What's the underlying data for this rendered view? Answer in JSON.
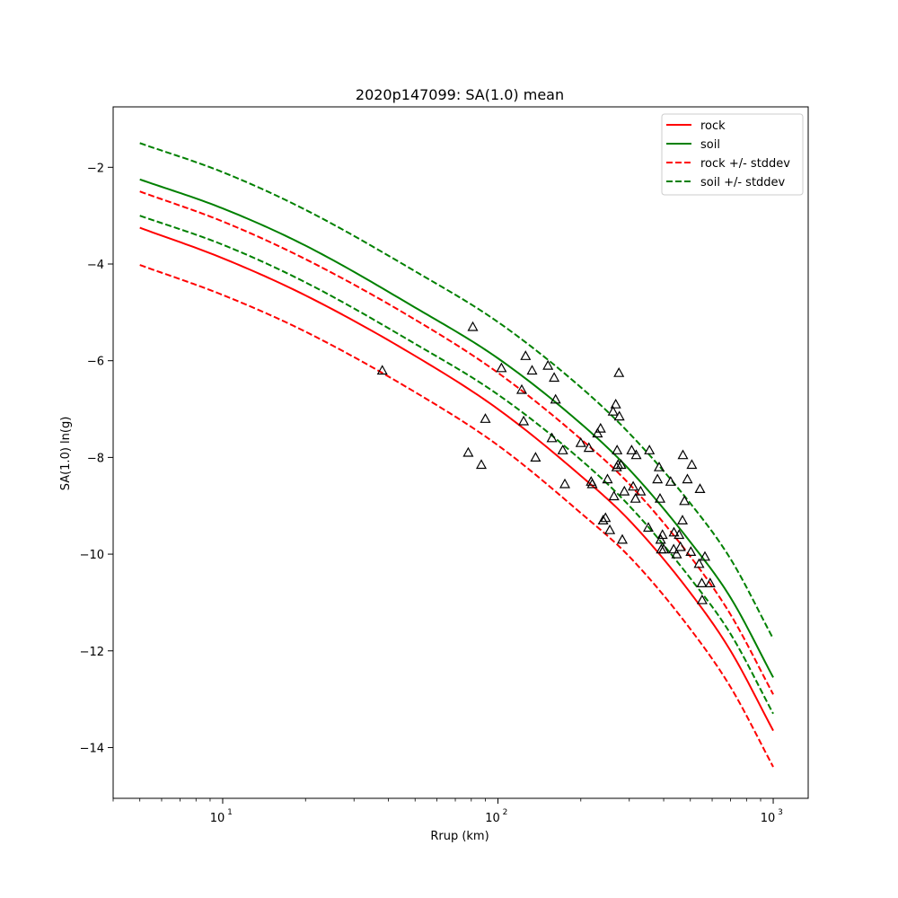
{
  "chart_data": {
    "type": "line",
    "title": "2020p147099: SA(1.0) mean",
    "xlabel": "Rrup (km)",
    "ylabel": "SA(1.0) ln(g)",
    "xscale": "log",
    "xlim": [
      4.0,
      1340
    ],
    "ylim": [
      -15.05,
      -0.75
    ],
    "xticks": [
      {
        "value": 10,
        "base": "10",
        "exp": "1"
      },
      {
        "value": 100,
        "base": "10",
        "exp": "2"
      },
      {
        "value": 1000,
        "base": "10",
        "exp": "3"
      }
    ],
    "yticks": [
      -14,
      -12,
      -10,
      -8,
      -6,
      -4,
      -2
    ],
    "grid": false,
    "legend": "top-right",
    "colors": {
      "rock": "#ff0000",
      "soil": "#008000",
      "stations": "#000000"
    },
    "series": [
      {
        "name": "rock",
        "key": "rock",
        "style": "solid",
        "x": [
          5,
          10,
          20,
          50,
          100,
          200,
          300,
          500,
          700,
          1000
        ],
        "y": [
          -3.25,
          -3.88,
          -4.65,
          -5.9,
          -7.0,
          -8.38,
          -9.3,
          -10.8,
          -12.0,
          -13.65
        ]
      },
      {
        "name": "soil",
        "key": "soil",
        "style": "solid",
        "x": [
          5,
          10,
          20,
          50,
          100,
          200,
          300,
          500,
          700,
          1000
        ],
        "y": [
          -2.25,
          -2.85,
          -3.62,
          -4.9,
          -5.95,
          -7.3,
          -8.25,
          -9.75,
          -10.9,
          -12.55
        ]
      },
      {
        "name": "rock +/- stddev",
        "key": "rock_upper",
        "style": "dashed",
        "x": [
          5,
          10,
          20,
          50,
          100,
          200,
          300,
          500,
          700,
          1000
        ],
        "y": [
          -2.5,
          -3.12,
          -3.9,
          -5.15,
          -6.25,
          -7.62,
          -8.55,
          -10.05,
          -11.25,
          -12.9
        ]
      },
      {
        "name": "",
        "key": "rock_lower",
        "style": "dashed",
        "x": [
          5,
          10,
          20,
          50,
          100,
          200,
          300,
          500,
          700,
          1000
        ],
        "y": [
          -4.02,
          -4.64,
          -5.4,
          -6.65,
          -7.75,
          -9.15,
          -10.05,
          -11.55,
          -12.75,
          -14.4
        ]
      },
      {
        "name": "soil +/- stddev",
        "key": "soil_upper",
        "style": "dashed",
        "x": [
          5,
          10,
          20,
          50,
          100,
          200,
          300,
          500,
          700,
          1000
        ],
        "y": [
          -1.5,
          -2.1,
          -2.88,
          -4.15,
          -5.2,
          -6.55,
          -7.5,
          -8.95,
          -10.1,
          -11.75
        ]
      },
      {
        "name": "",
        "key": "soil_lower",
        "style": "dashed",
        "x": [
          5,
          10,
          20,
          50,
          100,
          200,
          300,
          500,
          700,
          1000
        ],
        "y": [
          -3.0,
          -3.6,
          -4.38,
          -5.65,
          -6.7,
          -8.05,
          -9.0,
          -10.5,
          -11.65,
          -13.3
        ]
      }
    ],
    "stations": {
      "marker": "triangle",
      "x": [
        38,
        78,
        81,
        87,
        90,
        103,
        122,
        124,
        126,
        133,
        137,
        152,
        157,
        160,
        162,
        172,
        175,
        200,
        214,
        218,
        220,
        230,
        236,
        241,
        246,
        250,
        255,
        262,
        264,
        268,
        270,
        271,
        273,
        275,
        276,
        280,
        283,
        288,
        306,
        310,
        316,
        318,
        330,
        352,
        355,
        380,
        385,
        388,
        390,
        392,
        396,
        400,
        424,
        435,
        436,
        446,
        455,
        460,
        468,
        470,
        476,
        488,
        502,
        506,
        538,
        542,
        550,
        552,
        565,
        590
      ],
      "y": [
        -6.2,
        -7.9,
        -5.3,
        -8.15,
        -7.2,
        -6.15,
        -6.6,
        -7.25,
        -5.9,
        -6.2,
        -8.0,
        -6.1,
        -7.6,
        -6.35,
        -6.8,
        -7.85,
        -8.55,
        -7.7,
        -7.8,
        -8.5,
        -8.55,
        -7.5,
        -7.4,
        -9.3,
        -9.25,
        -8.45,
        -9.5,
        -7.05,
        -8.8,
        -6.9,
        -8.2,
        -7.85,
        -8.15,
        -6.25,
        -7.15,
        -8.15,
        -9.7,
        -8.7,
        -7.85,
        -8.6,
        -8.85,
        -7.95,
        -8.7,
        -9.45,
        -7.85,
        -8.45,
        -8.2,
        -8.85,
        -9.7,
        -9.9,
        -9.6,
        -9.9,
        -8.5,
        -9.9,
        -9.55,
        -10.0,
        -9.6,
        -9.85,
        -9.3,
        -7.95,
        -8.9,
        -8.45,
        -9.95,
        -8.15,
        -10.2,
        -8.65,
        -10.6,
        -10.95,
        -10.05,
        -10.6
      ]
    }
  }
}
